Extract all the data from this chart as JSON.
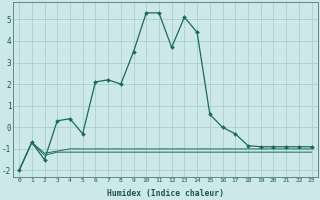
{
  "xlabel": "Humidex (Indice chaleur)",
  "background_color": "#cce8e8",
  "grid_color": "#aacfcf",
  "line_color": "#1a6b5a",
  "xlim": [
    -0.5,
    23.5
  ],
  "ylim": [
    -2.3,
    5.8
  ],
  "xticks": [
    0,
    1,
    2,
    3,
    4,
    5,
    6,
    7,
    8,
    9,
    10,
    11,
    12,
    13,
    14,
    15,
    16,
    17,
    18,
    19,
    20,
    21,
    22,
    23
  ],
  "yticks": [
    -2,
    -1,
    0,
    1,
    2,
    3,
    4,
    5
  ],
  "main_x": [
    0,
    1,
    2,
    3,
    4,
    5,
    6,
    7,
    8,
    9,
    10,
    11,
    12,
    13,
    14,
    15,
    16,
    17,
    18,
    19,
    20,
    21,
    22,
    23
  ],
  "main_y": [
    -2.0,
    -0.7,
    -1.5,
    0.3,
    0.4,
    -0.3,
    2.1,
    2.2,
    2.0,
    3.5,
    5.3,
    5.3,
    3.7,
    5.1,
    4.4,
    0.6,
    0.0,
    -0.3,
    -0.85,
    -0.9,
    -0.9,
    -0.9,
    -0.9,
    -0.9
  ],
  "flat1_x": [
    0,
    1,
    2,
    3,
    4,
    5,
    6,
    7,
    8,
    9,
    10,
    11,
    12,
    13,
    14,
    15,
    16,
    17,
    18,
    19,
    20,
    21,
    22,
    23
  ],
  "flat1_y": [
    -2.0,
    -0.7,
    -1.2,
    -1.1,
    -1.0,
    -1.0,
    -1.0,
    -1.0,
    -1.0,
    -1.0,
    -1.0,
    -1.0,
    -1.0,
    -1.0,
    -1.0,
    -1.0,
    -1.0,
    -1.0,
    -1.0,
    -1.0,
    -1.0,
    -1.0,
    -1.0,
    -1.0
  ],
  "flat2_x": [
    0,
    1,
    2,
    3,
    4,
    5,
    6,
    7,
    8,
    9,
    10,
    11,
    12,
    13,
    14,
    15,
    16,
    17,
    18,
    19,
    20,
    21,
    22,
    23
  ],
  "flat2_y": [
    -2.0,
    -0.7,
    -1.3,
    -1.15,
    -1.15,
    -1.15,
    -1.15,
    -1.15,
    -1.15,
    -1.15,
    -1.15,
    -1.15,
    -1.15,
    -1.15,
    -1.15,
    -1.15,
    -1.15,
    -1.15,
    -1.15,
    -1.15,
    -1.15,
    -1.15,
    -1.15,
    -1.15
  ]
}
